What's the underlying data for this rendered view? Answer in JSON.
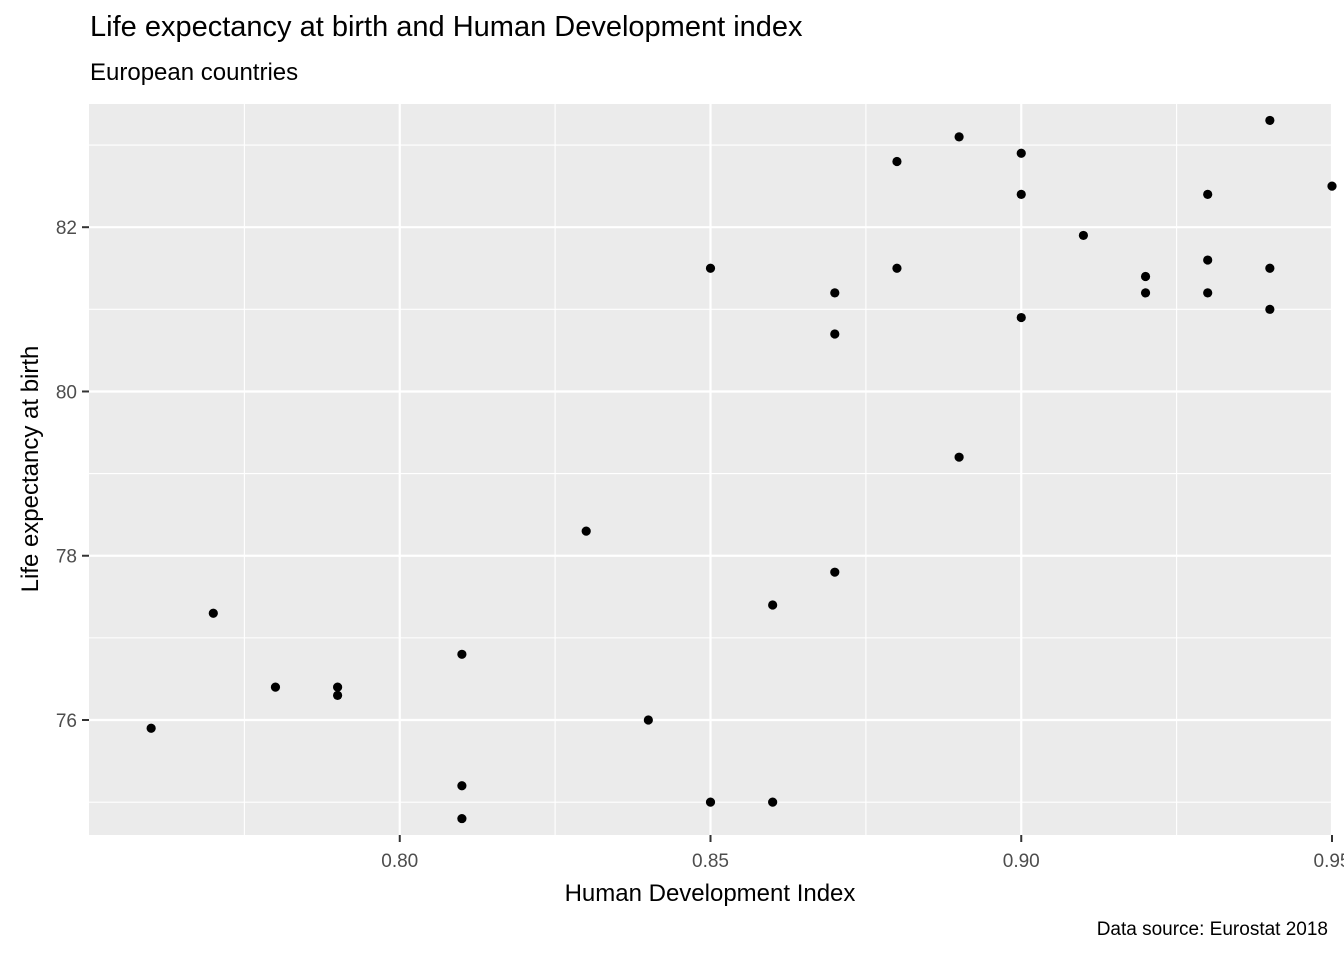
{
  "chart_data": {
    "type": "scatter",
    "title": "Life expectancy at birth and Human Development index",
    "subtitle": "European countries",
    "xlabel": "Human Development Index",
    "ylabel": "Life expectancy at birth",
    "caption": "Data source: Eurostat 2018",
    "xlim": [
      0.75,
      0.95
    ],
    "ylim": [
      74.6,
      83.5
    ],
    "x_ticks": [
      0.8,
      0.85,
      0.9,
      0.95
    ],
    "x_tick_labels": [
      "0.80",
      "0.85",
      "0.90",
      "0.95"
    ],
    "y_ticks": [
      76,
      78,
      80,
      82
    ],
    "y_tick_labels": [
      "76",
      "78",
      "80",
      "82"
    ],
    "grid": true,
    "background_color": "#ebebeb",
    "point_color": "#000000",
    "points": [
      {
        "x": 0.76,
        "y": 75.9
      },
      {
        "x": 0.77,
        "y": 77.3
      },
      {
        "x": 0.78,
        "y": 76.4
      },
      {
        "x": 0.79,
        "y": 76.4
      },
      {
        "x": 0.79,
        "y": 76.3
      },
      {
        "x": 0.81,
        "y": 76.8
      },
      {
        "x": 0.81,
        "y": 75.2
      },
      {
        "x": 0.81,
        "y": 74.8
      },
      {
        "x": 0.83,
        "y": 78.3
      },
      {
        "x": 0.84,
        "y": 76.0
      },
      {
        "x": 0.85,
        "y": 81.5
      },
      {
        "x": 0.85,
        "y": 75.0
      },
      {
        "x": 0.86,
        "y": 77.4
      },
      {
        "x": 0.86,
        "y": 75.0
      },
      {
        "x": 0.87,
        "y": 81.2
      },
      {
        "x": 0.87,
        "y": 80.7
      },
      {
        "x": 0.87,
        "y": 77.8
      },
      {
        "x": 0.88,
        "y": 82.8
      },
      {
        "x": 0.88,
        "y": 81.5
      },
      {
        "x": 0.89,
        "y": 83.1
      },
      {
        "x": 0.89,
        "y": 79.2
      },
      {
        "x": 0.9,
        "y": 82.9
      },
      {
        "x": 0.9,
        "y": 82.4
      },
      {
        "x": 0.9,
        "y": 80.9
      },
      {
        "x": 0.91,
        "y": 81.9
      },
      {
        "x": 0.92,
        "y": 81.4
      },
      {
        "x": 0.92,
        "y": 81.2
      },
      {
        "x": 0.93,
        "y": 82.4
      },
      {
        "x": 0.93,
        "y": 81.6
      },
      {
        "x": 0.93,
        "y": 81.2
      },
      {
        "x": 0.94,
        "y": 83.3
      },
      {
        "x": 0.94,
        "y": 81.5
      },
      {
        "x": 0.94,
        "y": 81.0
      },
      {
        "x": 0.95,
        "y": 82.5
      }
    ]
  }
}
